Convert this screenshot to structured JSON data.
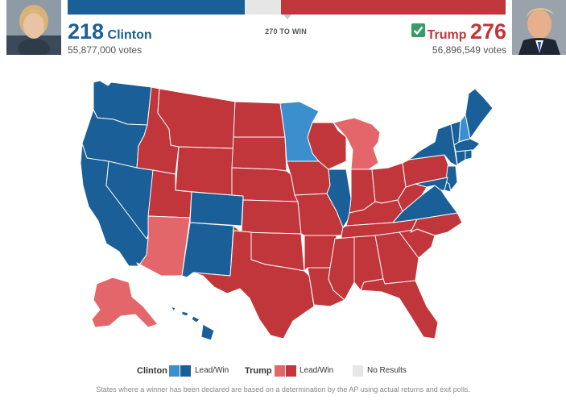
{
  "candidates": {
    "clinton": {
      "electoral_votes": "218",
      "name": "Clinton",
      "popular_votes": "55,877,000 votes",
      "color": "#1a5f98",
      "photo": "clinton-photo"
    },
    "trump": {
      "electoral_votes": "276",
      "name": "Trump",
      "popular_votes": "56,896,549 votes",
      "color": "#c0363a",
      "photo": "trump-photo",
      "winner_icon": "checkmark-icon"
    }
  },
  "progress": {
    "label": "270 TO WIN",
    "threshold": 270,
    "total": 538,
    "dem_electoral": 218,
    "rep_electoral": 276
  },
  "legend": {
    "clinton_label": "Clinton",
    "clinton_status": "Lead/Win",
    "trump_label": "Trump",
    "trump_status": "Lead/Win",
    "no_results": "No Results",
    "colors": {
      "dem_lead": "#3a8fcc",
      "dem_win": "#1a5f98",
      "rep_lead": "#e3676a",
      "rep_win": "#c0363a",
      "no_results": "#e6e6e6"
    }
  },
  "footnote": "States where a winner has been declared are based on a determination by the AP using actual returns and exit polls.",
  "map": {
    "states": [
      {
        "code": "WA",
        "status": "dem_win"
      },
      {
        "code": "OR",
        "status": "dem_win"
      },
      {
        "code": "CA",
        "status": "dem_win"
      },
      {
        "code": "NV",
        "status": "dem_win"
      },
      {
        "code": "ID",
        "status": "rep_win"
      },
      {
        "code": "MT",
        "status": "rep_win"
      },
      {
        "code": "WY",
        "status": "rep_win"
      },
      {
        "code": "UT",
        "status": "rep_win"
      },
      {
        "code": "AZ",
        "status": "rep_lead"
      },
      {
        "code": "CO",
        "status": "dem_win"
      },
      {
        "code": "NM",
        "status": "dem_win"
      },
      {
        "code": "ND",
        "status": "rep_win"
      },
      {
        "code": "SD",
        "status": "rep_win"
      },
      {
        "code": "NE",
        "status": "rep_win"
      },
      {
        "code": "KS",
        "status": "rep_win"
      },
      {
        "code": "OK",
        "status": "rep_win"
      },
      {
        "code": "TX",
        "status": "rep_win"
      },
      {
        "code": "MN",
        "status": "dem_lead"
      },
      {
        "code": "IA",
        "status": "rep_win"
      },
      {
        "code": "MO",
        "status": "rep_win"
      },
      {
        "code": "AR",
        "status": "rep_win"
      },
      {
        "code": "LA",
        "status": "rep_win"
      },
      {
        "code": "WI",
        "status": "rep_win"
      },
      {
        "code": "IL",
        "status": "dem_win"
      },
      {
        "code": "MI",
        "status": "rep_lead"
      },
      {
        "code": "IN",
        "status": "rep_win"
      },
      {
        "code": "OH",
        "status": "rep_win"
      },
      {
        "code": "KY",
        "status": "rep_win"
      },
      {
        "code": "TN",
        "status": "rep_win"
      },
      {
        "code": "MS",
        "status": "rep_win"
      },
      {
        "code": "AL",
        "status": "rep_win"
      },
      {
        "code": "GA",
        "status": "rep_win"
      },
      {
        "code": "FL",
        "status": "rep_win"
      },
      {
        "code": "SC",
        "status": "rep_win"
      },
      {
        "code": "NC",
        "status": "rep_win"
      },
      {
        "code": "VA",
        "status": "dem_win"
      },
      {
        "code": "WV",
        "status": "rep_win"
      },
      {
        "code": "PA",
        "status": "rep_win"
      },
      {
        "code": "NY",
        "status": "dem_win"
      },
      {
        "code": "VT",
        "status": "dem_win"
      },
      {
        "code": "NH",
        "status": "dem_lead"
      },
      {
        "code": "ME",
        "status": "dem_win"
      },
      {
        "code": "MA",
        "status": "dem_win"
      },
      {
        "code": "CT",
        "status": "dem_win"
      },
      {
        "code": "RI",
        "status": "dem_win"
      },
      {
        "code": "NJ",
        "status": "dem_win"
      },
      {
        "code": "DE",
        "status": "dem_win"
      },
      {
        "code": "MD",
        "status": "dem_win"
      },
      {
        "code": "AK",
        "status": "rep_lead"
      },
      {
        "code": "HI",
        "status": "dem_win"
      }
    ]
  }
}
